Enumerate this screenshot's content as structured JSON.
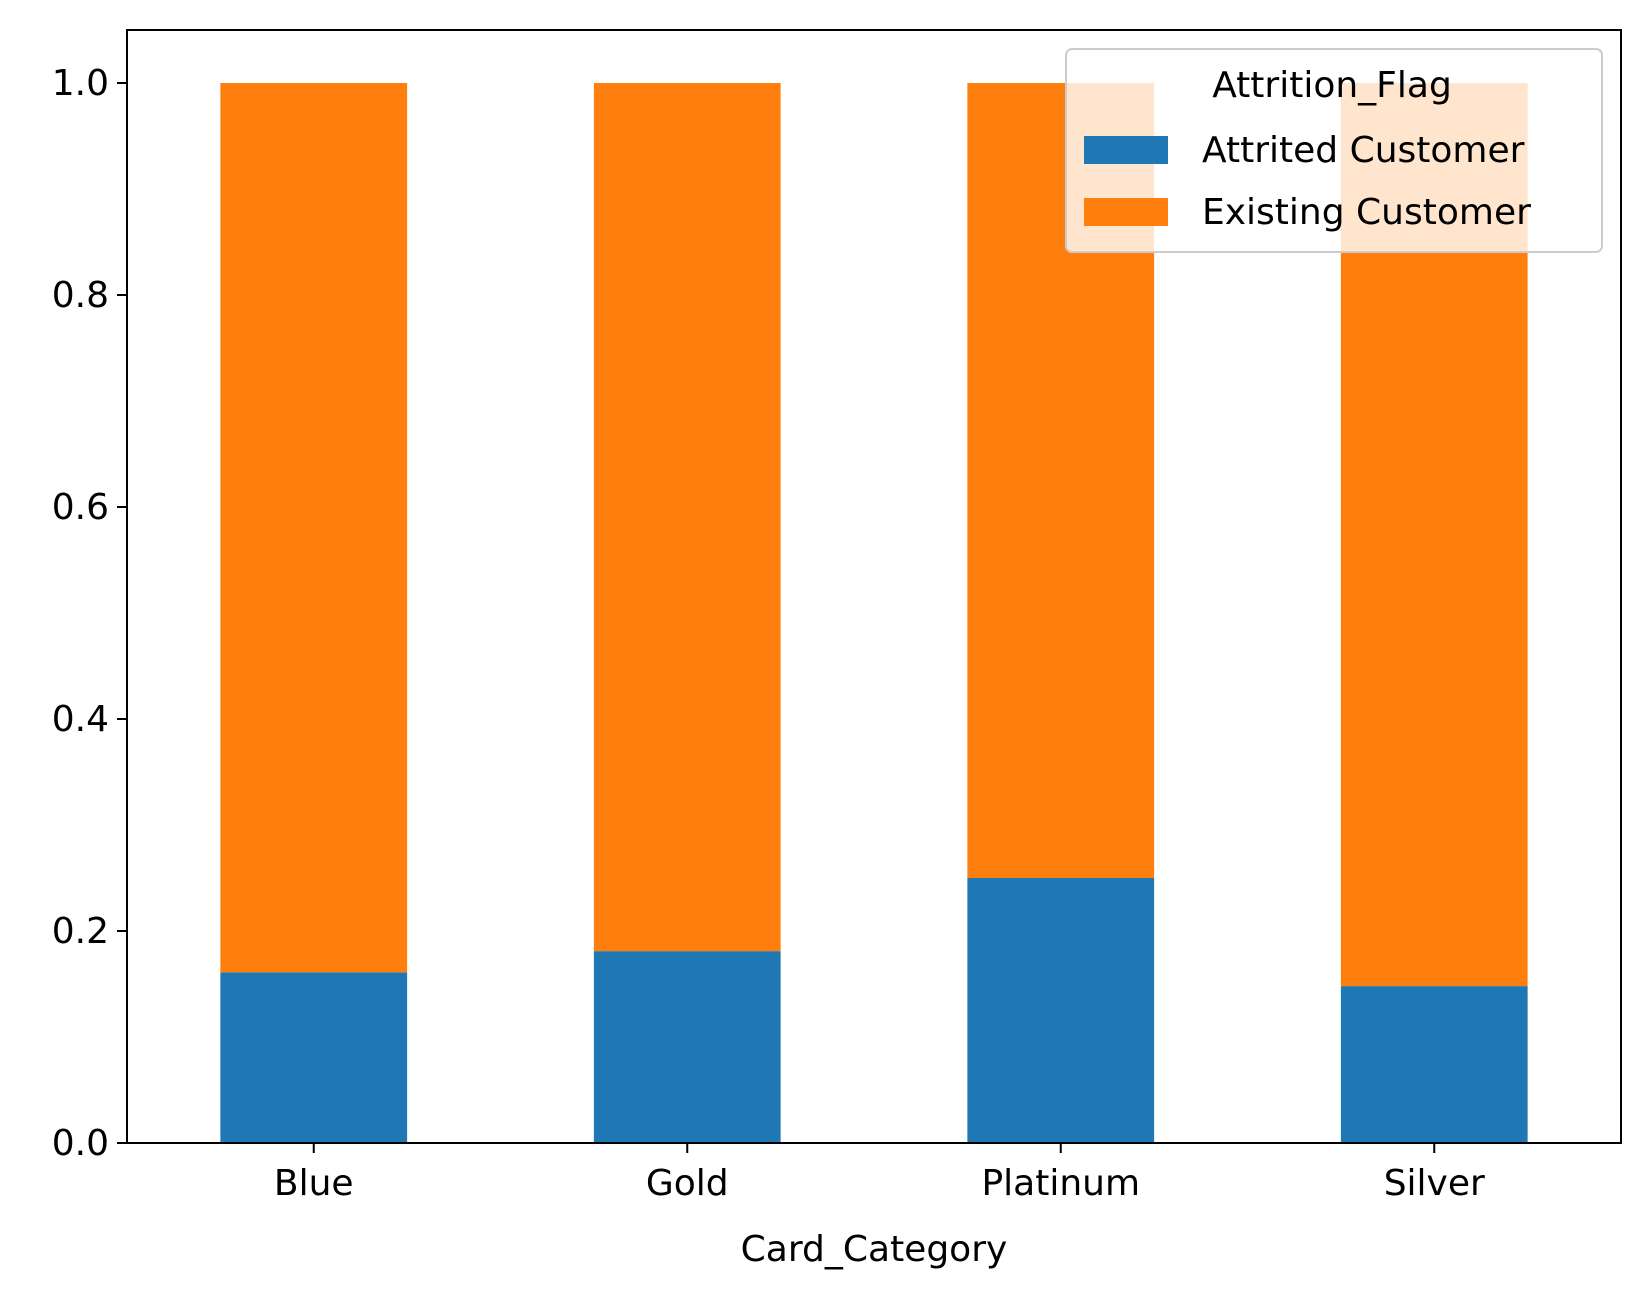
{
  "chart_data": {
    "type": "bar",
    "stacked": true,
    "categories": [
      "Blue",
      "Gold",
      "Platinum",
      "Silver"
    ],
    "series": [
      {
        "name": "Attrited Customer",
        "color": "#1f77b4",
        "values": [
          0.161,
          0.181,
          0.25,
          0.148
        ]
      },
      {
        "name": "Existing Customer",
        "color": "#ff7f0e",
        "values": [
          0.839,
          0.819,
          0.75,
          0.852
        ]
      }
    ],
    "title": "",
    "xlabel": "Card_Category",
    "ylabel": "",
    "ylim": [
      0,
      1.05
    ],
    "yticks": [
      "0.0",
      "0.2",
      "0.4",
      "0.6",
      "0.8",
      "1.0"
    ],
    "grid": false,
    "legend": {
      "title": "Attrition_Flag",
      "placement": "top-right"
    }
  }
}
